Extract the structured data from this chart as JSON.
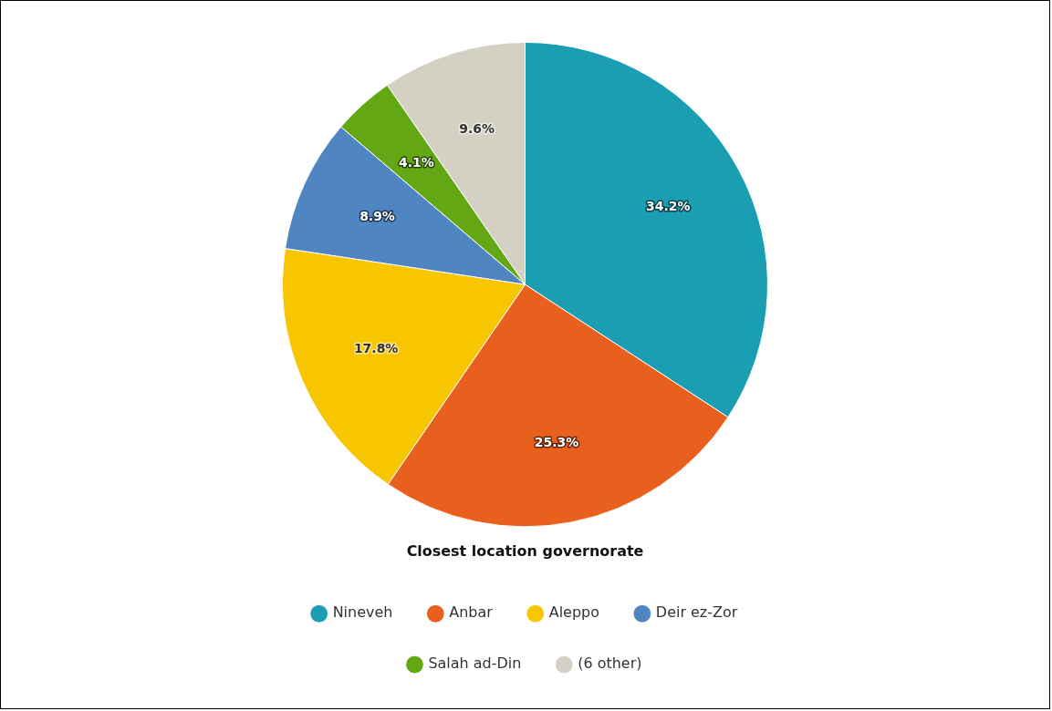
{
  "chart_data": {
    "type": "pie",
    "categories": [
      "Nineveh",
      "Anbar",
      "Aleppo",
      "Deir ez-Zor",
      "Salah ad-Din",
      "(6 other)"
    ],
    "values": [
      34.2,
      25.3,
      17.8,
      8.9,
      4.1,
      9.6
    ],
    "colors": [
      "#1b9db2",
      "#e9601e",
      "#f8c600",
      "#4f86c2",
      "#63a814",
      "#d4d1c4"
    ],
    "value_labels": [
      "34.2%",
      "25.3%",
      "17.8%",
      "8.9%",
      "4.1%",
      "9.6%"
    ],
    "legend_title": "Closest location governorate",
    "legend": "bottom"
  }
}
